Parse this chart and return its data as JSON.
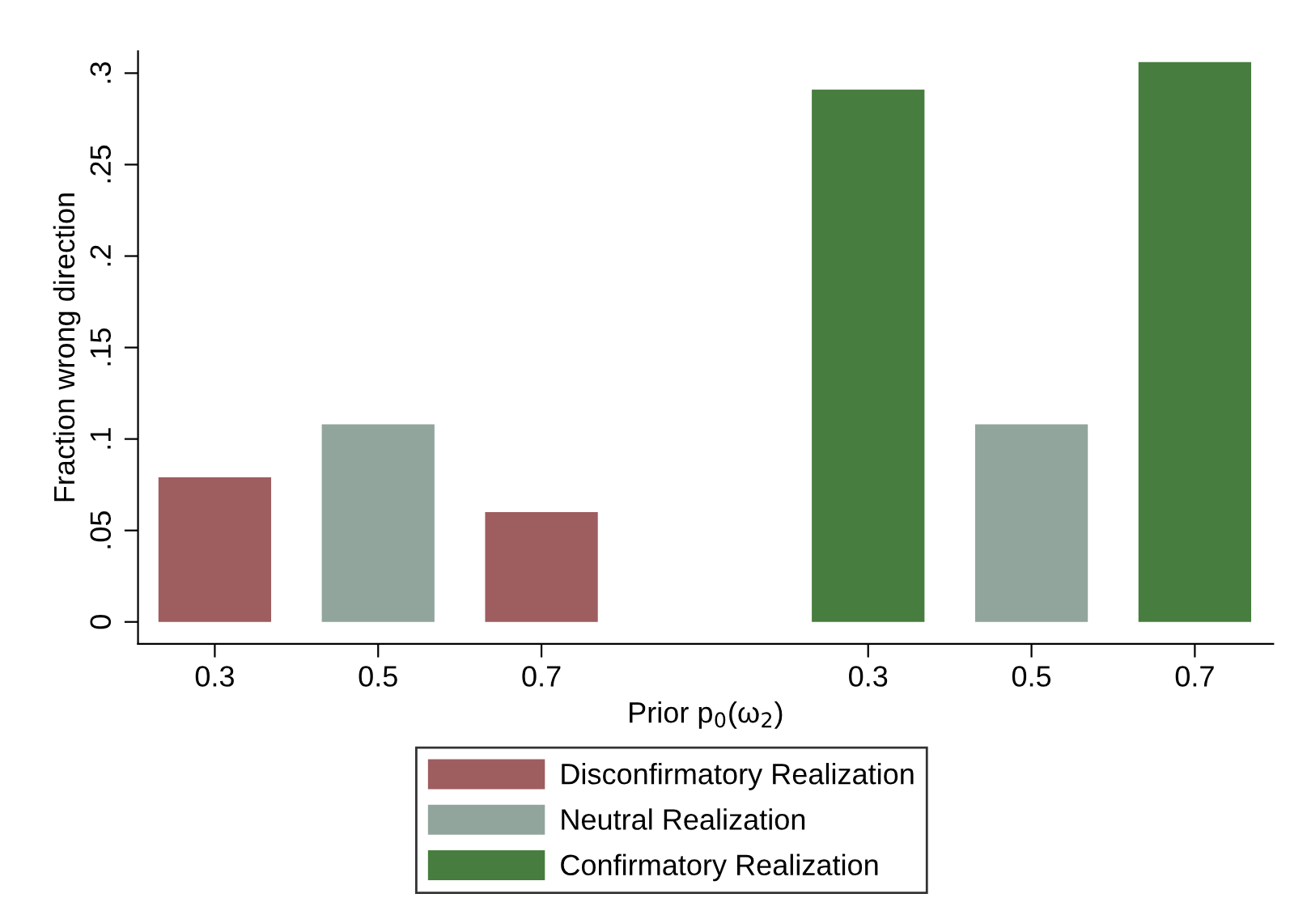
{
  "chart_data": {
    "type": "bar",
    "xlabel": "Prior p$_{0}$(ω$_{2}$)",
    "ylabel": "Fraction wrong direction",
    "categories": [
      "0.3",
      "0.5",
      "0.7",
      null,
      "0.3",
      "0.5",
      "0.7"
    ],
    "series": [
      {
        "name": "Disconfirmatory Realization",
        "color": "#9e5d5f",
        "values": [
          0.079,
          null,
          0.06,
          null,
          null,
          null,
          null
        ]
      },
      {
        "name": "Neutral Realization",
        "color": "#92a59c",
        "values": [
          null,
          0.108,
          null,
          null,
          null,
          0.108,
          null
        ]
      },
      {
        "name": "Confirmatory Realization",
        "color": "#477d3e",
        "values": [
          null,
          null,
          null,
          null,
          0.291,
          null,
          0.306
        ]
      }
    ],
    "ylim": [
      -0.012,
      0.312
    ],
    "yticks": [
      0,
      {
        "value": 0.05,
        "label": ".05"
      },
      {
        "value": 0.1,
        "label": ".1"
      },
      {
        "value": 0.15,
        "label": ".15"
      },
      {
        "value": 0.2,
        "label": ".2"
      },
      {
        "value": 0.25,
        "label": ".25"
      },
      {
        "value": 0.3,
        "label": ".3"
      }
    ],
    "grid": false,
    "legend": "bottom"
  }
}
